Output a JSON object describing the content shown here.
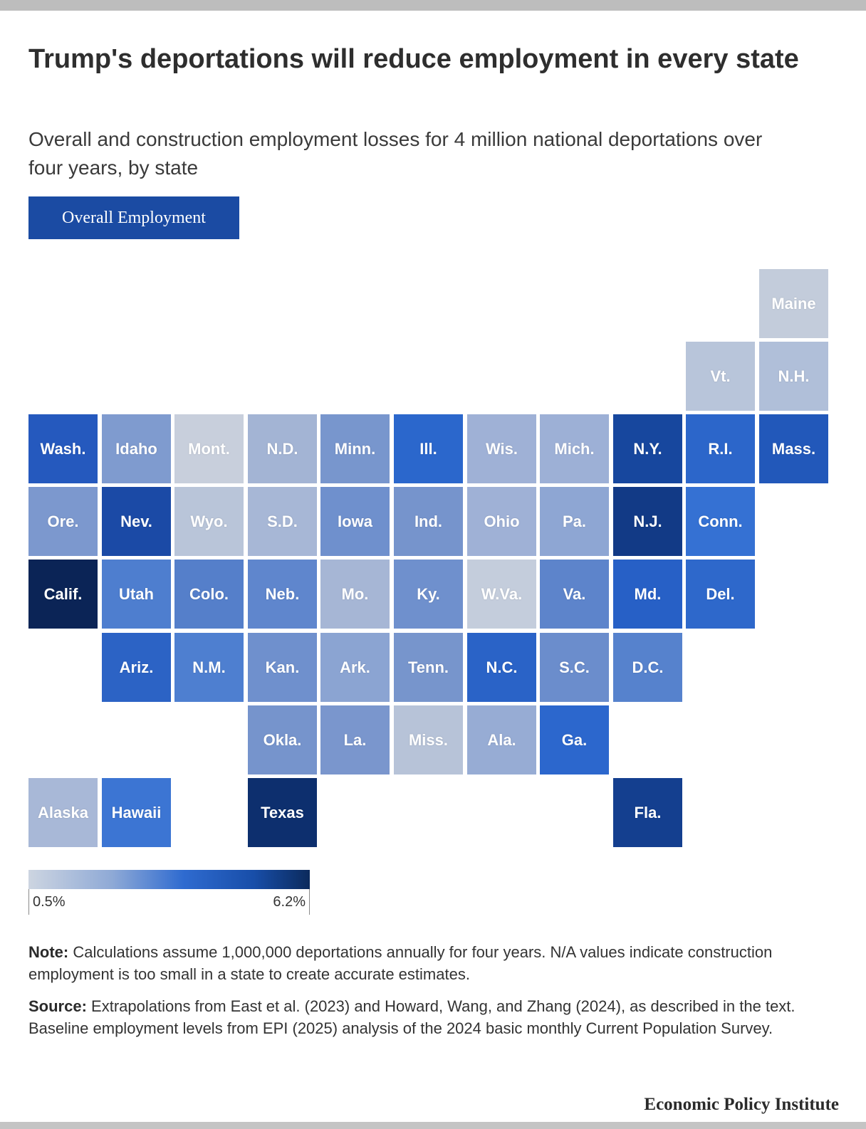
{
  "title": "Trump's deportations will reduce employment in every state",
  "subtitle": "Overall and construction employment losses for 4 million national deportations over four years, by state",
  "tab_label": "Overall Employment",
  "legend": {
    "min_label": "0.5%",
    "max_label": "6.2%",
    "min_value": 0.5,
    "max_value": 6.2
  },
  "colors": {
    "scale_low": "#cdd5e1",
    "scale_mid": "#2f6bd0",
    "scale_high": "#0b2a5c",
    "tab": "#1b4ba3"
  },
  "states": [
    {
      "abbr": "Maine",
      "row": 0,
      "col": 10,
      "color": "#c3ccdb"
    },
    {
      "abbr": "Vt.",
      "row": 1,
      "col": 9,
      "color": "#b8c5da"
    },
    {
      "abbr": "N.H.",
      "row": 1,
      "col": 10,
      "color": "#b0bfd9"
    },
    {
      "abbr": "Wash.",
      "row": 2,
      "col": 0,
      "color": "#2559be"
    },
    {
      "abbr": "Idaho",
      "row": 2,
      "col": 1,
      "color": "#7f9bcf"
    },
    {
      "abbr": "Mont.",
      "row": 2,
      "col": 2,
      "color": "#c8cfdc"
    },
    {
      "abbr": "N.D.",
      "row": 2,
      "col": 3,
      "color": "#a3b4d4"
    },
    {
      "abbr": "Minn.",
      "row": 2,
      "col": 4,
      "color": "#7896cd"
    },
    {
      "abbr": "Ill.",
      "row": 2,
      "col": 5,
      "color": "#2b67cc"
    },
    {
      "abbr": "Wis.",
      "row": 2,
      "col": 6,
      "color": "#9fb1d6"
    },
    {
      "abbr": "Mich.",
      "row": 2,
      "col": 7,
      "color": "#9db0d6"
    },
    {
      "abbr": "N.Y.",
      "row": 2,
      "col": 8,
      "color": "#17479e"
    },
    {
      "abbr": "R.I.",
      "row": 2,
      "col": 9,
      "color": "#2c66ca"
    },
    {
      "abbr": "Mass.",
      "row": 2,
      "col": 10,
      "color": "#2258ba"
    },
    {
      "abbr": "Ore.",
      "row": 3,
      "col": 0,
      "color": "#7c98ce"
    },
    {
      "abbr": "Nev.",
      "row": 3,
      "col": 1,
      "color": "#1b4aa6"
    },
    {
      "abbr": "Wyo.",
      "row": 3,
      "col": 2,
      "color": "#b9c5d9"
    },
    {
      "abbr": "S.D.",
      "row": 3,
      "col": 3,
      "color": "#a7b7d6"
    },
    {
      "abbr": "Iowa",
      "row": 3,
      "col": 4,
      "color": "#6f90cd"
    },
    {
      "abbr": "Ind.",
      "row": 3,
      "col": 5,
      "color": "#7694cc"
    },
    {
      "abbr": "Ohio",
      "row": 3,
      "col": 6,
      "color": "#9fb1d6"
    },
    {
      "abbr": "Pa.",
      "row": 3,
      "col": 7,
      "color": "#8ea6d3"
    },
    {
      "abbr": "N.J.",
      "row": 3,
      "col": 8,
      "color": "#123a86"
    },
    {
      "abbr": "Conn.",
      "row": 3,
      "col": 9,
      "color": "#3571d3"
    },
    {
      "abbr": "Calif.",
      "row": 4,
      "col": 0,
      "color": "#0b2456"
    },
    {
      "abbr": "Utah",
      "row": 4,
      "col": 1,
      "color": "#4e7ecf"
    },
    {
      "abbr": "Colo.",
      "row": 4,
      "col": 2,
      "color": "#557fca"
    },
    {
      "abbr": "Neb.",
      "row": 4,
      "col": 3,
      "color": "#5f86cd"
    },
    {
      "abbr": "Mo.",
      "row": 4,
      "col": 4,
      "color": "#a6b6d5"
    },
    {
      "abbr": "Ky.",
      "row": 4,
      "col": 5,
      "color": "#6f90cd"
    },
    {
      "abbr": "W.Va.",
      "row": 4,
      "col": 6,
      "color": "#c4cddc"
    },
    {
      "abbr": "Va.",
      "row": 4,
      "col": 7,
      "color": "#5d84cb"
    },
    {
      "abbr": "Md.",
      "row": 4,
      "col": 8,
      "color": "#2760c6"
    },
    {
      "abbr": "Del.",
      "row": 4,
      "col": 9,
      "color": "#2e68cb"
    },
    {
      "abbr": "Ariz.",
      "row": 5,
      "col": 1,
      "color": "#2c63c5"
    },
    {
      "abbr": "N.M.",
      "row": 5,
      "col": 2,
      "color": "#4e7fd0"
    },
    {
      "abbr": "Kan.",
      "row": 5,
      "col": 3,
      "color": "#6f90cd"
    },
    {
      "abbr": "Ark.",
      "row": 5,
      "col": 4,
      "color": "#8ba4d2"
    },
    {
      "abbr": "Tenn.",
      "row": 5,
      "col": 5,
      "color": "#7795cc"
    },
    {
      "abbr": "N.C.",
      "row": 5,
      "col": 6,
      "color": "#2a63c7"
    },
    {
      "abbr": "S.C.",
      "row": 5,
      "col": 7,
      "color": "#6b8dcc"
    },
    {
      "abbr": "D.C.",
      "row": 5,
      "col": 8,
      "color": "#5682cd"
    },
    {
      "abbr": "Okla.",
      "row": 6,
      "col": 3,
      "color": "#7694cc"
    },
    {
      "abbr": "La.",
      "row": 6,
      "col": 4,
      "color": "#7a96cd"
    },
    {
      "abbr": "Miss.",
      "row": 6,
      "col": 5,
      "color": "#b7c3d8"
    },
    {
      "abbr": "Ala.",
      "row": 6,
      "col": 6,
      "color": "#97acd4"
    },
    {
      "abbr": "Ga.",
      "row": 6,
      "col": 7,
      "color": "#2c67cd"
    },
    {
      "abbr": "Alaska",
      "row": 7,
      "col": 0,
      "color": "#a8b8d7"
    },
    {
      "abbr": "Hawaii",
      "row": 7,
      "col": 1,
      "color": "#3c75d3"
    },
    {
      "abbr": "Texas",
      "row": 7,
      "col": 3,
      "color": "#0d2f6e"
    },
    {
      "abbr": "Fla.",
      "row": 7,
      "col": 8,
      "color": "#143f8f"
    }
  ],
  "note_label": "Note:",
  "note_text": " Calculations assume 1,000,000 deportations annually for four years. N/A values indicate construction employment is too small in a state to create accurate estimates.",
  "source_label": "Source:",
  "source_text": " Extrapolations from East et al. (2023) and Howard, Wang, and Zhang (2024), as described in the text. Baseline employment levels from EPI (2025) analysis of the 2024 basic monthly Current Population Survey.",
  "brand": "Economic Policy Institute"
}
